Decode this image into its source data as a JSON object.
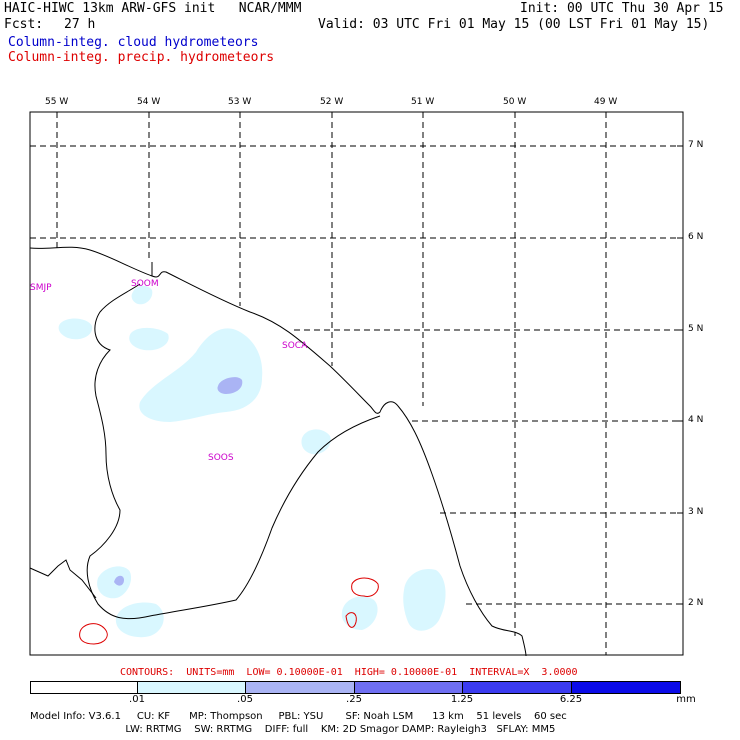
{
  "header": {
    "model_title": "HAIC-HIWC 13km ARW-GFS init   NCAR/MMM",
    "fcst_label": "Fcst:",
    "fcst_value": "27 h",
    "init": "Init: 00 UTC Thu 30 Apr 15",
    "valid": "Valid: 03 UTC Fri 01 May 15 (00 LST Fri 01 May 15)",
    "legend_cloud": "Column-integ. cloud hydrometeors",
    "legend_precip": "Column-integ. precip. hydrometeors"
  },
  "map": {
    "lon_labels": [
      "55 W",
      "54 W",
      "53 W",
      "52 W",
      "51 W",
      "50 W",
      "49 W"
    ],
    "lat_labels": [
      "7 N",
      "6 N",
      "5 N",
      "4 N",
      "3 N",
      "2 N"
    ],
    "stations": [
      "SMJP",
      "SOOM",
      "SOCA",
      "SOOS"
    ]
  },
  "contour_info": "CONTOURS:  UNITS=mm  LOW= 0.10000E-01  HIGH= 0.10000E-01  INTERVAL=X  3.0000",
  "colorbar": {
    "unit": "mm",
    "tick_labels": [
      ".01",
      ".05",
      ".25",
      "1.25",
      "6.25"
    ],
    "colors": [
      "#ffffff",
      "#d9f7ff",
      "#aab4f4",
      "#6f6ff2",
      "#3b3bf0",
      "#0b0be8"
    ]
  },
  "footer": {
    "line1": "Model Info: V3.6.1     CU: KF      MP: Thompson     PBL: YSU       SF: Noah LSM      13 km    51 levels    60 sec",
    "line2": "                              LW: RRTMG    SW: RRTMG    DIFF: full    KM: 2D Smagor DAMP: Rayleigh3   SFLAY: MM5"
  },
  "colors": {
    "cloud_fill_light": "#d9f7ff",
    "cloud_fill_mid": "#aab4f4",
    "precip_contour": "#dd0000",
    "station_label": "#cc00cc"
  }
}
